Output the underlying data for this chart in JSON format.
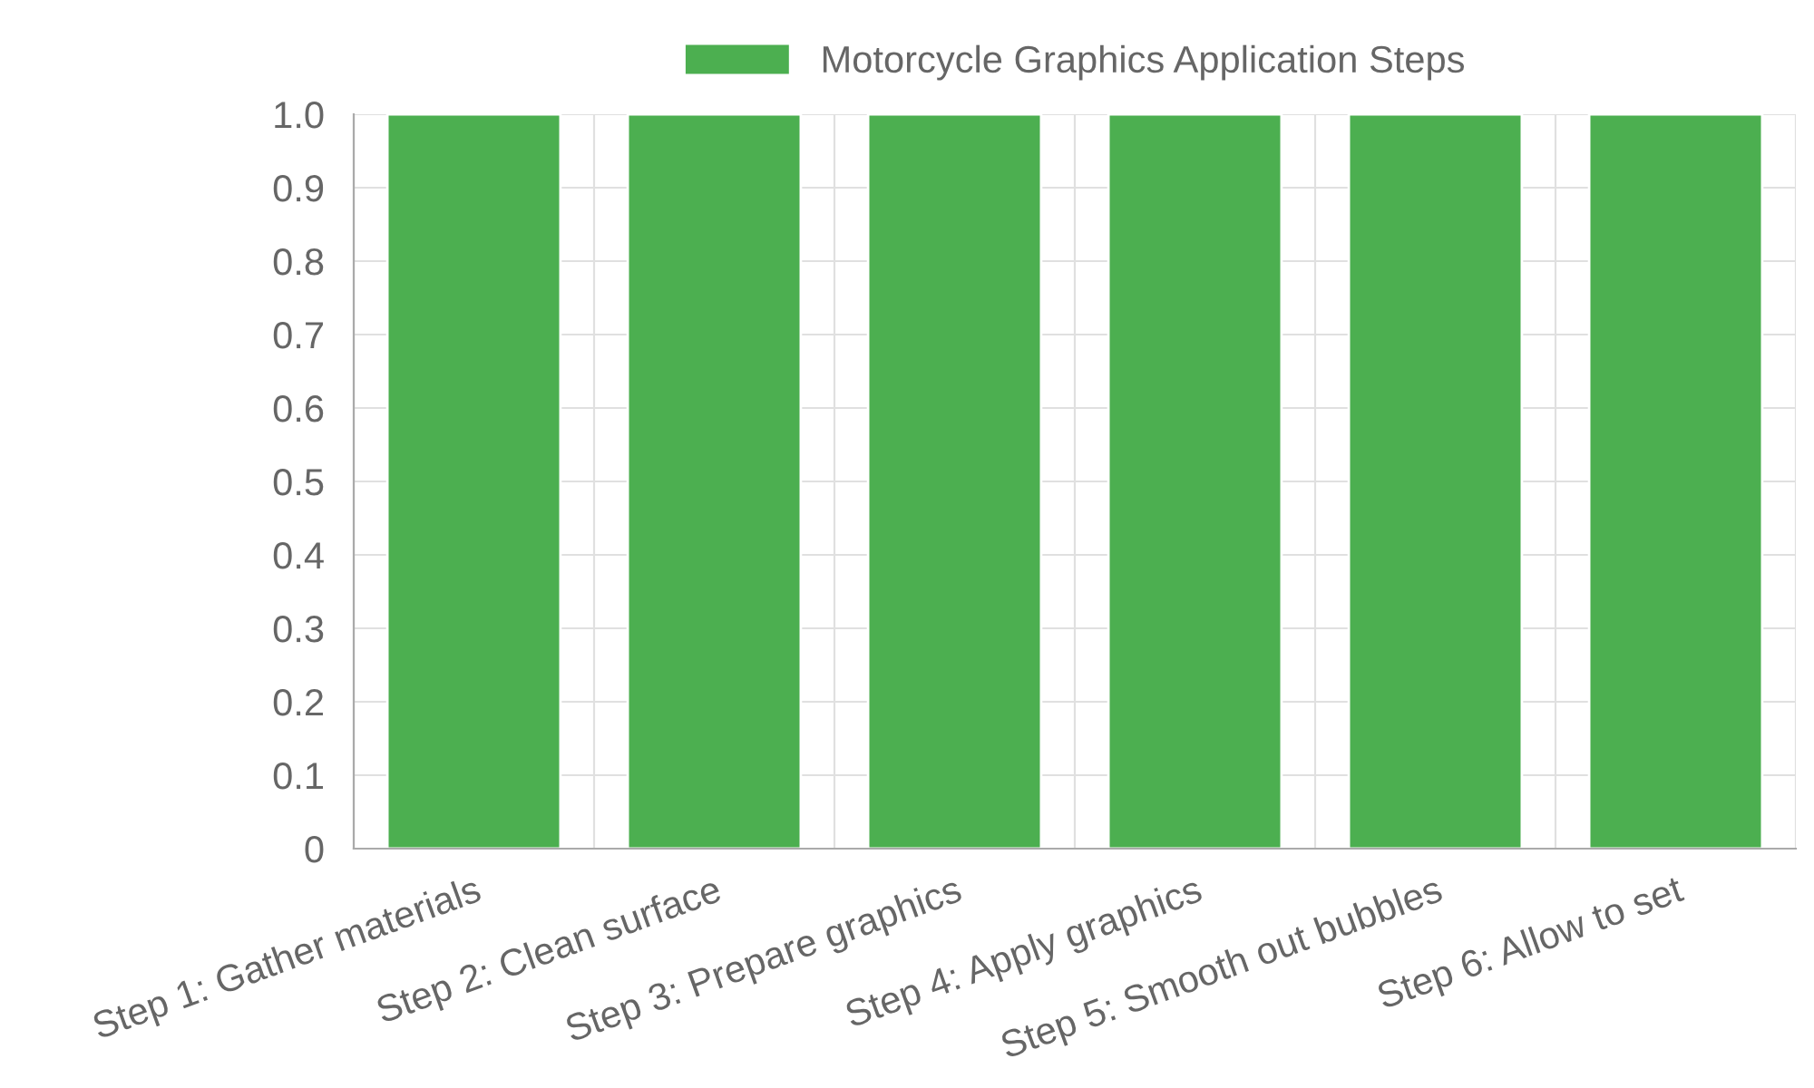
{
  "chart_data": {
    "type": "bar",
    "categories": [
      "Step 1: Gather materials",
      "Step 2: Clean surface",
      "Step 3: Prepare graphics",
      "Step 4: Apply graphics",
      "Step 5: Smooth out bubbles",
      "Step 6: Allow to set"
    ],
    "series": [
      {
        "name": "Motorcycle Graphics Application Steps",
        "color": "#4caf50",
        "values": [
          1,
          1,
          1,
          1,
          1,
          1
        ]
      }
    ],
    "ylim": [
      0,
      1
    ],
    "yticks": [
      0,
      0.1,
      0.2,
      0.3,
      0.4,
      0.5,
      0.6,
      0.7,
      0.8,
      0.9,
      {
        "value": 1,
        "label": "1.0"
      }
    ],
    "grid": true,
    "legend": "top"
  }
}
